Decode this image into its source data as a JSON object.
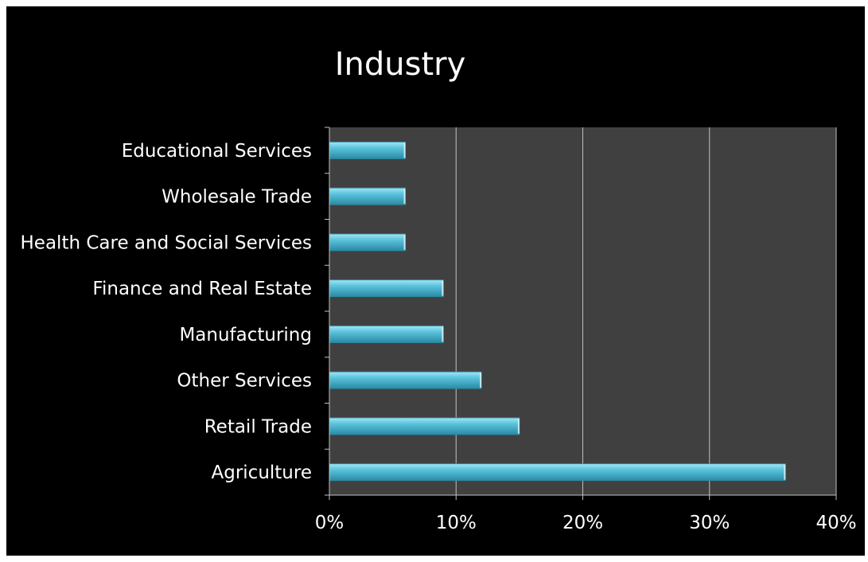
{
  "chart_data": {
    "type": "bar",
    "orientation": "horizontal",
    "title": "Industry",
    "categories": [
      "Educational Services",
      "Wholesale Trade",
      "Health Care and Social Services",
      "Finance and Real Estate",
      "Manufacturing",
      "Other Services",
      "Retail Trade",
      "Agriculture"
    ],
    "values": [
      6,
      6,
      6,
      9,
      9,
      12,
      15,
      36
    ],
    "xlim": [
      0,
      40
    ],
    "xticks": [
      0,
      10,
      20,
      30,
      40
    ],
    "tick_labels": [
      "0%",
      "10%",
      "20%",
      "30%",
      "40%"
    ],
    "xlabel": "",
    "ylabel": "",
    "grid": "vertical major gridlines",
    "legend": "none",
    "colors": {
      "background": "#000000",
      "plot_area": "#404040",
      "bar": "#5bc4dd",
      "bar_highlight": "#a6e5f2",
      "bar_shadow": "#2a8aa4",
      "gridline": "#bfbfbf",
      "text": "#ffffff"
    }
  }
}
